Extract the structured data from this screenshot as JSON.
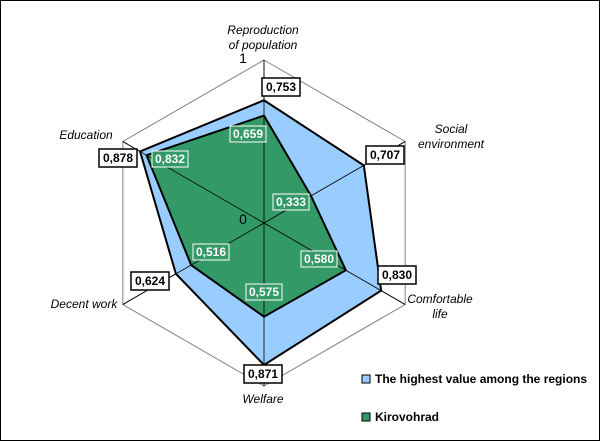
{
  "chart_data": {
    "type": "radar",
    "axes": [
      "Reproduction of population",
      "Social environment",
      "Comfortable life",
      "Welfare",
      "Decent work",
      "Education"
    ],
    "axis_label_lines": [
      [
        "Reproduction",
        "of population"
      ],
      [
        "Social",
        "environment"
      ],
      [
        "Comfortable",
        "life"
      ],
      [
        "Welfare"
      ],
      [
        "Decent work"
      ],
      [
        "Education"
      ]
    ],
    "scale_min": 0,
    "scale_max": 1,
    "scale_labels": [
      "0",
      "1"
    ],
    "series": [
      {
        "name": "The highest value among the regions",
        "values": [
          0.753,
          0.707,
          0.83,
          0.871,
          0.624,
          0.878
        ],
        "labels": [
          "0,753",
          "0,707",
          "0,830",
          "0,871",
          "0,624",
          "0,878"
        ],
        "color": "#99CCFF"
      },
      {
        "name": "Kirovohrad",
        "values": [
          0.659,
          0.333,
          0.58,
          0.575,
          0.516,
          0.832
        ],
        "labels": [
          "0,659",
          "0,333",
          "0,580",
          "0,575",
          "0,516",
          "0,832"
        ],
        "color": "#339966"
      }
    ],
    "legend_position": "bottom-right"
  }
}
